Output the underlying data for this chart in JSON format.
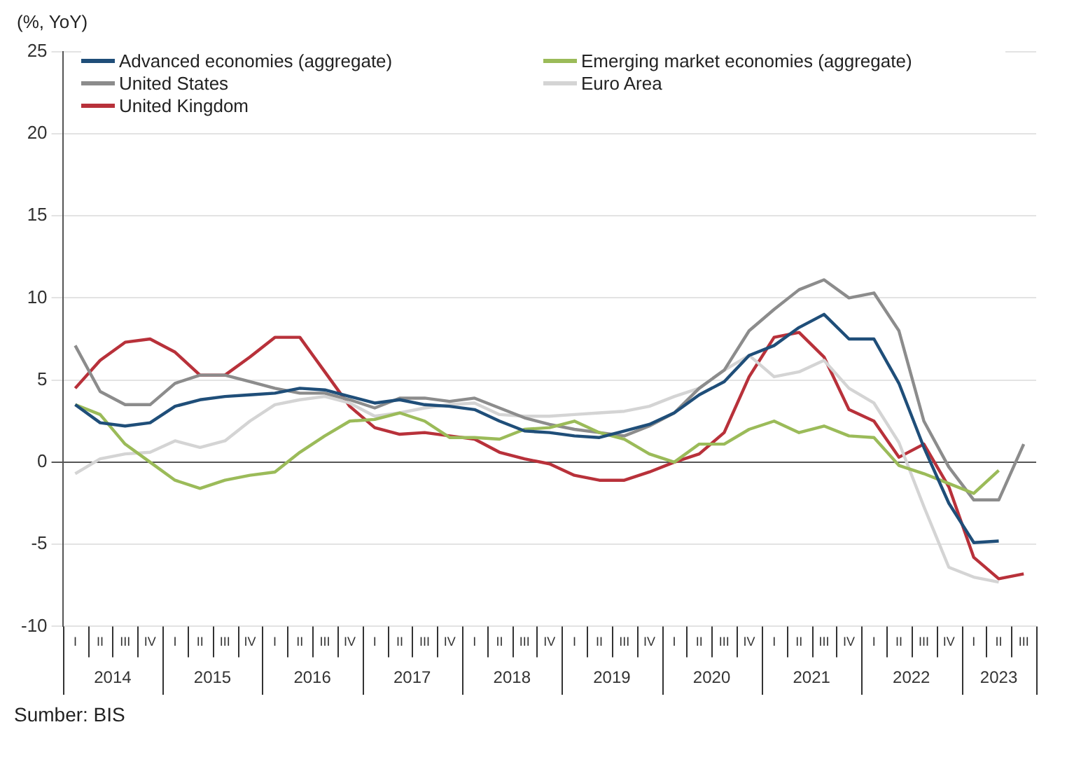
{
  "chart_data": {
    "type": "line",
    "ylabel": "(%, YoY)",
    "categories": [
      "I",
      "II",
      "III",
      "IV",
      "I",
      "II",
      "III",
      "IV",
      "I",
      "II",
      "III",
      "IV",
      "I",
      "II",
      "III",
      "IV",
      "I",
      "II",
      "III",
      "IV",
      "I",
      "II",
      "III",
      "IV",
      "I",
      "II",
      "III",
      "IV",
      "I",
      "II",
      "III",
      "IV",
      "I",
      "II",
      "III",
      "IV",
      "I",
      "II",
      "III"
    ],
    "series": [
      {
        "name": "Advanced economies (aggregate)",
        "color": "#1f4e79",
        "values": [
          3.5,
          2.4,
          2.2,
          2.4,
          3.4,
          3.8,
          4.0,
          4.1,
          4.2,
          4.5,
          4.4,
          4.0,
          3.6,
          3.8,
          3.5,
          3.4,
          3.2,
          2.5,
          1.9,
          1.8,
          1.6,
          1.5,
          1.9,
          2.3,
          3.0,
          4.1,
          4.9,
          6.5,
          7.1,
          8.2,
          9.0,
          7.5,
          7.5,
          4.8,
          0.9,
          -2.5,
          -4.9,
          -4.8,
          null
        ]
      },
      {
        "name": "Emerging market economies (aggregate)",
        "color": "#9bbb59",
        "values": [
          3.5,
          2.9,
          1.1,
          0.0,
          -1.1,
          -1.6,
          -1.1,
          -0.8,
          -0.6,
          0.6,
          1.6,
          2.5,
          2.6,
          3.0,
          2.5,
          1.5,
          1.5,
          1.4,
          2.0,
          2.1,
          2.5,
          1.8,
          1.4,
          0.5,
          0.0,
          1.1,
          1.1,
          2.0,
          2.5,
          1.8,
          2.2,
          1.6,
          1.5,
          -0.2,
          -0.7,
          -1.3,
          -1.9,
          -0.5,
          null
        ]
      },
      {
        "name": "United States",
        "color": "#8c8c8c",
        "values": [
          7.1,
          4.3,
          3.5,
          3.5,
          4.8,
          5.3,
          5.3,
          4.9,
          4.5,
          4.2,
          4.2,
          3.8,
          3.3,
          3.9,
          3.9,
          3.7,
          3.9,
          3.3,
          2.7,
          2.3,
          2.0,
          1.8,
          1.6,
          2.2,
          3.0,
          4.5,
          5.6,
          8.0,
          9.3,
          10.5,
          11.1,
          10.0,
          10.3,
          8.0,
          2.5,
          -0.3,
          -2.3,
          -2.3,
          1.1
        ]
      },
      {
        "name": "Euro Area",
        "color": "#d4d4d4",
        "values": [
          -0.7,
          0.2,
          0.5,
          0.6,
          1.3,
          0.9,
          1.3,
          2.5,
          3.5,
          3.8,
          4.0,
          3.6,
          2.8,
          3.0,
          3.3,
          3.5,
          3.6,
          2.9,
          2.8,
          2.8,
          2.9,
          3.0,
          3.1,
          3.4,
          4.0,
          4.5,
          5.6,
          6.5,
          5.2,
          5.5,
          6.2,
          4.5,
          3.6,
          1.2,
          -2.7,
          -6.4,
          -7.0,
          -7.3,
          null
        ]
      },
      {
        "name": "United Kingdom",
        "color": "#b8313a",
        "values": [
          4.5,
          6.2,
          7.3,
          7.5,
          6.7,
          5.3,
          5.3,
          6.4,
          7.6,
          7.6,
          5.5,
          3.4,
          2.1,
          1.7,
          1.8,
          1.6,
          1.4,
          0.6,
          0.2,
          -0.1,
          -0.8,
          -1.1,
          -1.1,
          -0.6,
          0.0,
          0.5,
          1.8,
          5.2,
          7.6,
          7.9,
          6.4,
          3.2,
          2.5,
          0.3,
          1.1,
          -1.5,
          -5.8,
          -7.1,
          -6.8
        ]
      }
    ],
    "ylim": [
      -10,
      25
    ],
    "yticks": [
      -10,
      -5,
      0,
      5,
      10,
      15,
      20,
      25
    ],
    "grid": "y",
    "legend": "top left",
    "marker": "none",
    "line_style": "solid",
    "annotations": [
      "2014",
      "2015",
      "2016",
      "2017",
      "2018",
      "2019",
      "2020",
      "2021",
      "2022",
      "2023",
      "Sumber: BIS"
    ]
  }
}
